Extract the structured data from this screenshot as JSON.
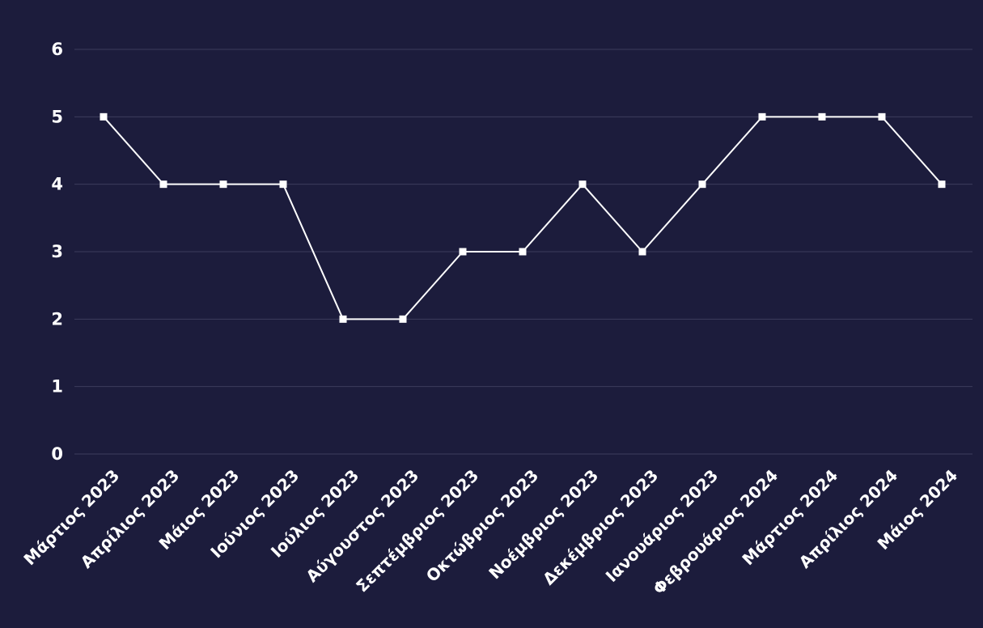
{
  "chart_data": {
    "type": "line",
    "title": "",
    "xlabel": "",
    "ylabel": "",
    "ylim": [
      0,
      6
    ],
    "y_ticks": [
      "0",
      "1",
      "2",
      "3",
      "4",
      "5",
      "6"
    ],
    "grid": true,
    "legend": "none",
    "categories": [
      "Μάρτιος 2023",
      "Απρίλιος 2023",
      "Μάιος 2023",
      "Ιούνιος 2023",
      "Ιούλιος 2023",
      "Αύγουστος 2023",
      "Σεπτέμβριος 2023",
      "Οκτώβριος 2023",
      "Νοέμβριος 2023",
      "Δεκέμβριος 2023",
      "Ιανουάριος 2023",
      "Φεβρουάριος 2024",
      "Μάρτιος 2024",
      "Απρίλιος 2024",
      "Μάιος 2024"
    ],
    "series": [
      {
        "values": [
          5,
          4,
          4,
          4,
          2,
          2,
          3,
          3,
          4,
          3,
          4,
          5,
          5,
          5,
          4
        ]
      }
    ],
    "colors": {
      "background": "#1c1c3c",
      "line": "#ffffff",
      "grid": "#3c3c5c",
      "text": "#ffffff"
    }
  }
}
